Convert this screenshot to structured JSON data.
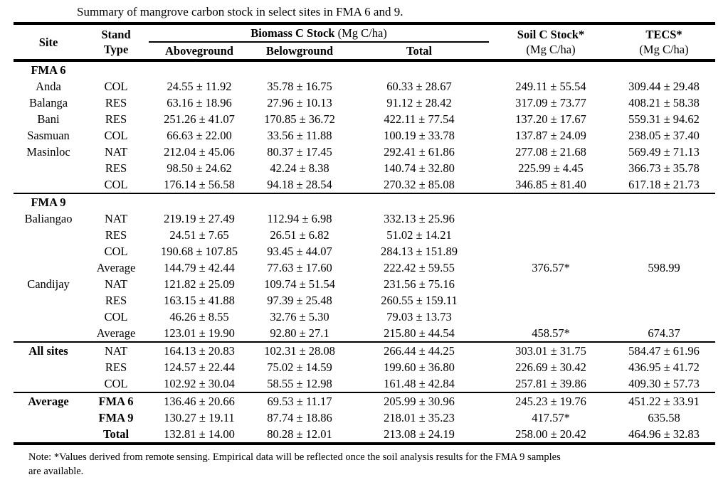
{
  "title": "Summary of mangrove carbon stock in select sites in FMA 6 and 9.",
  "table": {
    "header": {
      "site": "Site",
      "stand_line1": "Stand",
      "stand_line2": "Type",
      "biomass_group": "Biomass C Stock",
      "biomass_unit": " (Mg C/ha)",
      "aboveground": "Aboveground",
      "belowground": "Belowground",
      "total": "Total",
      "soil_line1": "Soil C Stock*",
      "soil_line2": "(Mg C/ha)",
      "tecs_line1": "TECS*",
      "tecs_line2": "(Mg C/ha)"
    },
    "rows": [
      {
        "site": "FMA 6",
        "site_bold": true,
        "stand": "",
        "above": "",
        "below": "",
        "total": "",
        "soil": "",
        "tecs": "",
        "section": true
      },
      {
        "site": "Anda",
        "stand": "COL",
        "above": "24.55 ± 11.92",
        "below": "35.78 ± 16.75",
        "total": "60.33 ± 28.67",
        "soil": "249.11 ± 55.54",
        "tecs": "309.44 ± 29.48"
      },
      {
        "site": "Balanga",
        "stand": "RES",
        "above": "63.16 ± 18.96",
        "below": "27.96 ± 10.13",
        "total": "91.12 ± 28.42",
        "soil": "317.09 ± 73.77",
        "tecs": "408.21 ± 58.38"
      },
      {
        "site": "Bani",
        "stand": "RES",
        "above": "251.26 ± 41.07",
        "below": "170.85 ± 36.72",
        "total": "422.11 ± 77.54",
        "soil": "137.20 ± 17.67",
        "tecs": "559.31 ± 94.62"
      },
      {
        "site": "Sasmuan",
        "stand": "COL",
        "above": "66.63 ± 22.00",
        "below": "33.56 ± 11.88",
        "total": "100.19 ± 33.78",
        "soil": "137.87 ± 24.09",
        "tecs": "238.05 ± 37.40"
      },
      {
        "site": "Masinloc",
        "stand": "NAT",
        "above": "212.04 ± 45.06",
        "below": "80.37 ± 17.45",
        "total": "292.41 ± 61.86",
        "soil": "277.08 ± 21.68",
        "tecs": "569.49 ± 71.13"
      },
      {
        "site": "",
        "stand": "RES",
        "above": "98.50 ± 24.62",
        "below": "42.24 ± 8.38",
        "total": "140.74 ± 32.80",
        "soil": "225.99 ± 4.45",
        "tecs": "366.73 ± 35.78"
      },
      {
        "site": "",
        "stand": "COL",
        "above": "176.14 ± 56.58",
        "below": "94.18 ± 28.54",
        "total": "270.32 ± 85.08",
        "soil": "346.85 ± 81.40",
        "tecs": "617.18 ± 21.73",
        "divider_after": true
      },
      {
        "site": "FMA 9",
        "site_bold": true,
        "stand": "",
        "above": "",
        "below": "",
        "total": "",
        "soil": "",
        "tecs": "",
        "section": true
      },
      {
        "site": "Baliangao",
        "stand": "NAT",
        "above": "219.19 ± 27.49",
        "below": "112.94 ± 6.98",
        "total": "332.13 ± 25.96",
        "soil": "",
        "tecs": ""
      },
      {
        "site": "",
        "stand": "RES",
        "above": "24.51 ± 7.65",
        "below": "26.51 ± 6.82",
        "total": "51.02 ± 14.21",
        "soil": "",
        "tecs": ""
      },
      {
        "site": "",
        "stand": "COL",
        "above": "190.68 ± 107.85",
        "below": "93.45 ± 44.07",
        "total": "284.13 ± 151.89",
        "soil": "",
        "tecs": ""
      },
      {
        "site": "",
        "stand": "Average",
        "above": "144.79 ± 42.44",
        "below": "77.63 ± 17.60",
        "total": "222.42 ± 59.55",
        "soil": "376.57*",
        "tecs": "598.99"
      },
      {
        "site": "Candijay",
        "stand": "NAT",
        "above": "121.82 ± 25.09",
        "below": "109.74 ± 51.54",
        "total": "231.56 ± 75.16",
        "soil": "",
        "tecs": ""
      },
      {
        "site": "",
        "stand": "RES",
        "above": "163.15 ± 41.88",
        "below": "97.39 ± 25.48",
        "total": "260.55 ± 159.11",
        "soil": "",
        "tecs": ""
      },
      {
        "site": "",
        "stand": "COL",
        "above": "46.26 ± 8.55",
        "below": "32.76 ± 5.30",
        "total": "79.03 ± 13.73",
        "soil": "",
        "tecs": ""
      },
      {
        "site": "",
        "stand": "Average",
        "above": "123.01 ± 19.90",
        "below": "92.80 ± 27.1",
        "total": "215.80 ± 44.54",
        "soil": "458.57*",
        "tecs": "674.37",
        "divider_after": true
      },
      {
        "site": "All sites",
        "site_bold": true,
        "stand": "NAT",
        "above": "164.13 ± 20.83",
        "below": "102.31 ± 28.08",
        "total": "266.44 ± 44.25",
        "soil": "303.01 ± 31.75",
        "tecs": "584.47 ± 61.96"
      },
      {
        "site": "",
        "stand": "RES",
        "above": "124.57 ± 22.44",
        "below": "75.02 ± 14.59",
        "total": "199.60 ± 36.80",
        "soil": "226.69 ± 30.42",
        "tecs": "436.95 ± 41.72"
      },
      {
        "site": "",
        "stand": "COL",
        "above": "102.92 ± 30.04",
        "below": "58.55 ± 12.98",
        "total": "161.48 ± 42.84",
        "soil": "257.81 ± 39.86",
        "tecs": "409.30 ± 57.73",
        "divider_after": true
      },
      {
        "site": "Average",
        "site_bold": true,
        "stand": "FMA 6",
        "stand_bold": true,
        "above": "136.46 ± 20.66",
        "below": "69.53 ± 11.17",
        "total": "205.99 ± 30.96",
        "soil": "245.23 ± 19.76",
        "tecs": "451.22 ± 33.91"
      },
      {
        "site": "",
        "stand": "FMA 9",
        "stand_bold": true,
        "above": "130.27 ± 19.11",
        "below": "87.74 ± 18.86",
        "total": "218.01 ± 35.23",
        "soil": "417.57*",
        "tecs": "635.58"
      },
      {
        "site": "",
        "stand": "Total",
        "stand_bold": true,
        "above": "132.81 ± 14.00",
        "below": "80.28 ± 12.01",
        "total": "213.08 ± 24.19",
        "soil": "258.00 ± 20.42",
        "tecs": "464.96 ± 32.83"
      }
    ]
  },
  "note": {
    "line1": "Note: *Values derived from remote sensing. Empirical data will be reflected once the soil analysis results for the FMA 9 samples",
    "line2": "are available."
  }
}
